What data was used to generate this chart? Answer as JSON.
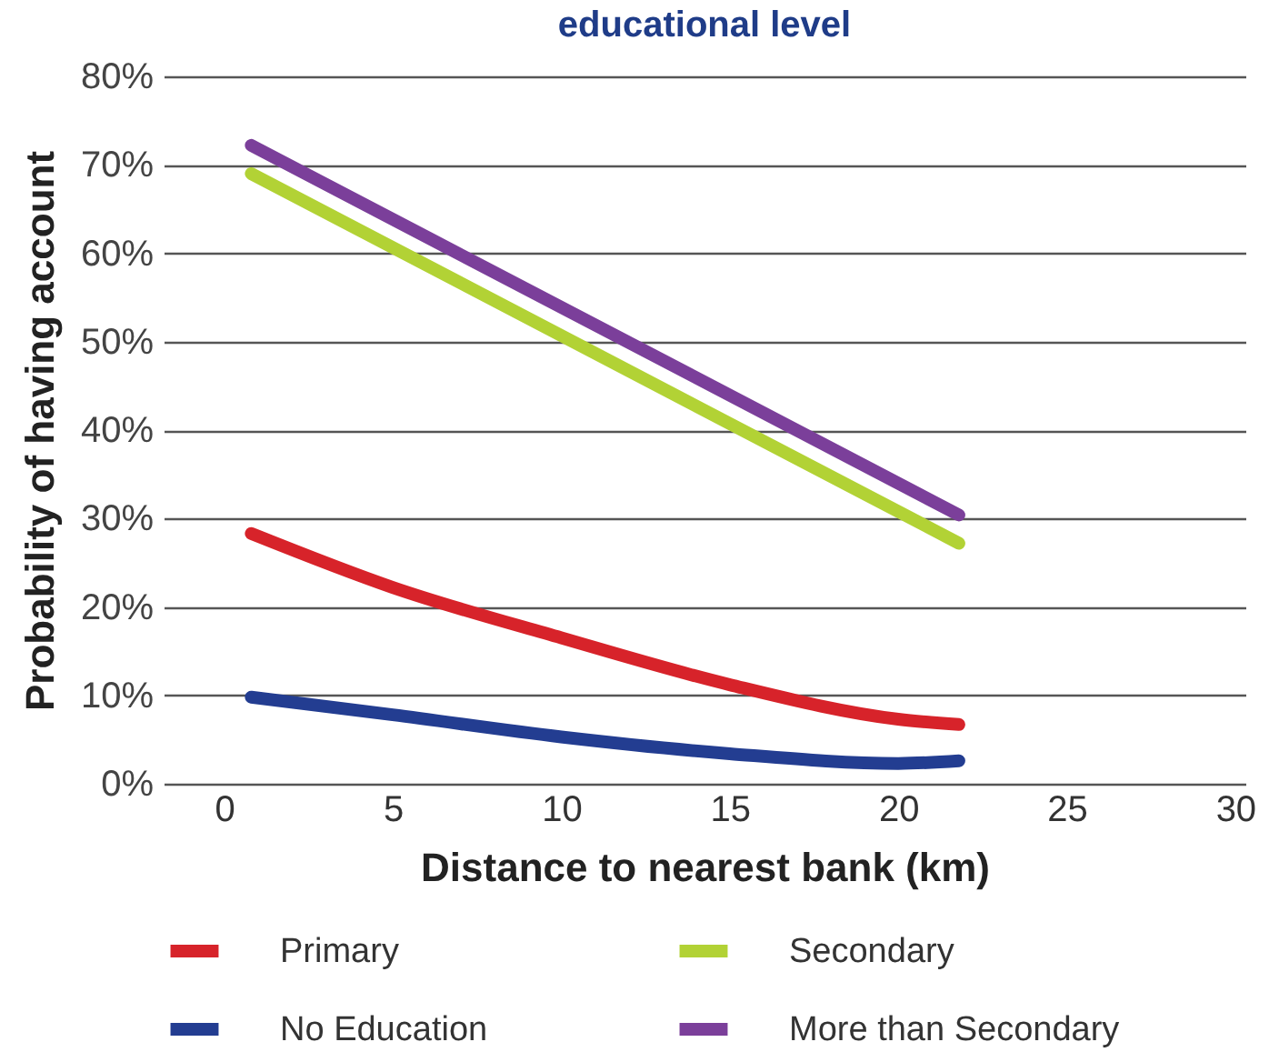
{
  "chart_data": {
    "type": "line",
    "title": "educational level",
    "xlabel": "Distance to nearest bank (km)",
    "ylabel": "Probability of having account",
    "xlim": [
      -1.8,
      30.3
    ],
    "xticks": [
      0,
      5,
      10,
      15,
      20,
      25,
      30
    ],
    "ylim": [
      0,
      80
    ],
    "yticks": [
      {
        "value": 0,
        "label": "0%"
      },
      {
        "value": 10,
        "label": "10%"
      },
      {
        "value": 20,
        "label": "20%"
      },
      {
        "value": 30,
        "label": "30%"
      },
      {
        "value": 40,
        "label": "40%"
      },
      {
        "value": 50,
        "label": "50%"
      },
      {
        "value": 60,
        "label": "60%"
      },
      {
        "value": 70,
        "label": "70%"
      },
      {
        "value": 80,
        "label": "80%"
      }
    ],
    "grid": "y",
    "legend": "bottom",
    "line_style": "solid",
    "series": [
      {
        "name": "Primary",
        "color": "#d7232a",
        "x": [
          0.8,
          5,
          10,
          15,
          20,
          21.8
        ],
        "values": [
          28.3,
          22.2,
          16.5,
          11.2,
          7.3,
          6.7
        ]
      },
      {
        "name": "Secondary",
        "color": "#b2d235",
        "x": [
          0.8,
          21.8
        ],
        "values": [
          69.0,
          27.2
        ]
      },
      {
        "name": "No Education",
        "color": "#233d91",
        "x": [
          0.8,
          5,
          10,
          15,
          20,
          21.8
        ],
        "values": [
          9.8,
          7.8,
          5.3,
          3.4,
          2.3,
          2.6
        ]
      },
      {
        "name": "More than Secondary",
        "color": "#7b3f9a",
        "x": [
          0.8,
          21.8
        ],
        "values": [
          72.2,
          30.4
        ]
      }
    ]
  }
}
